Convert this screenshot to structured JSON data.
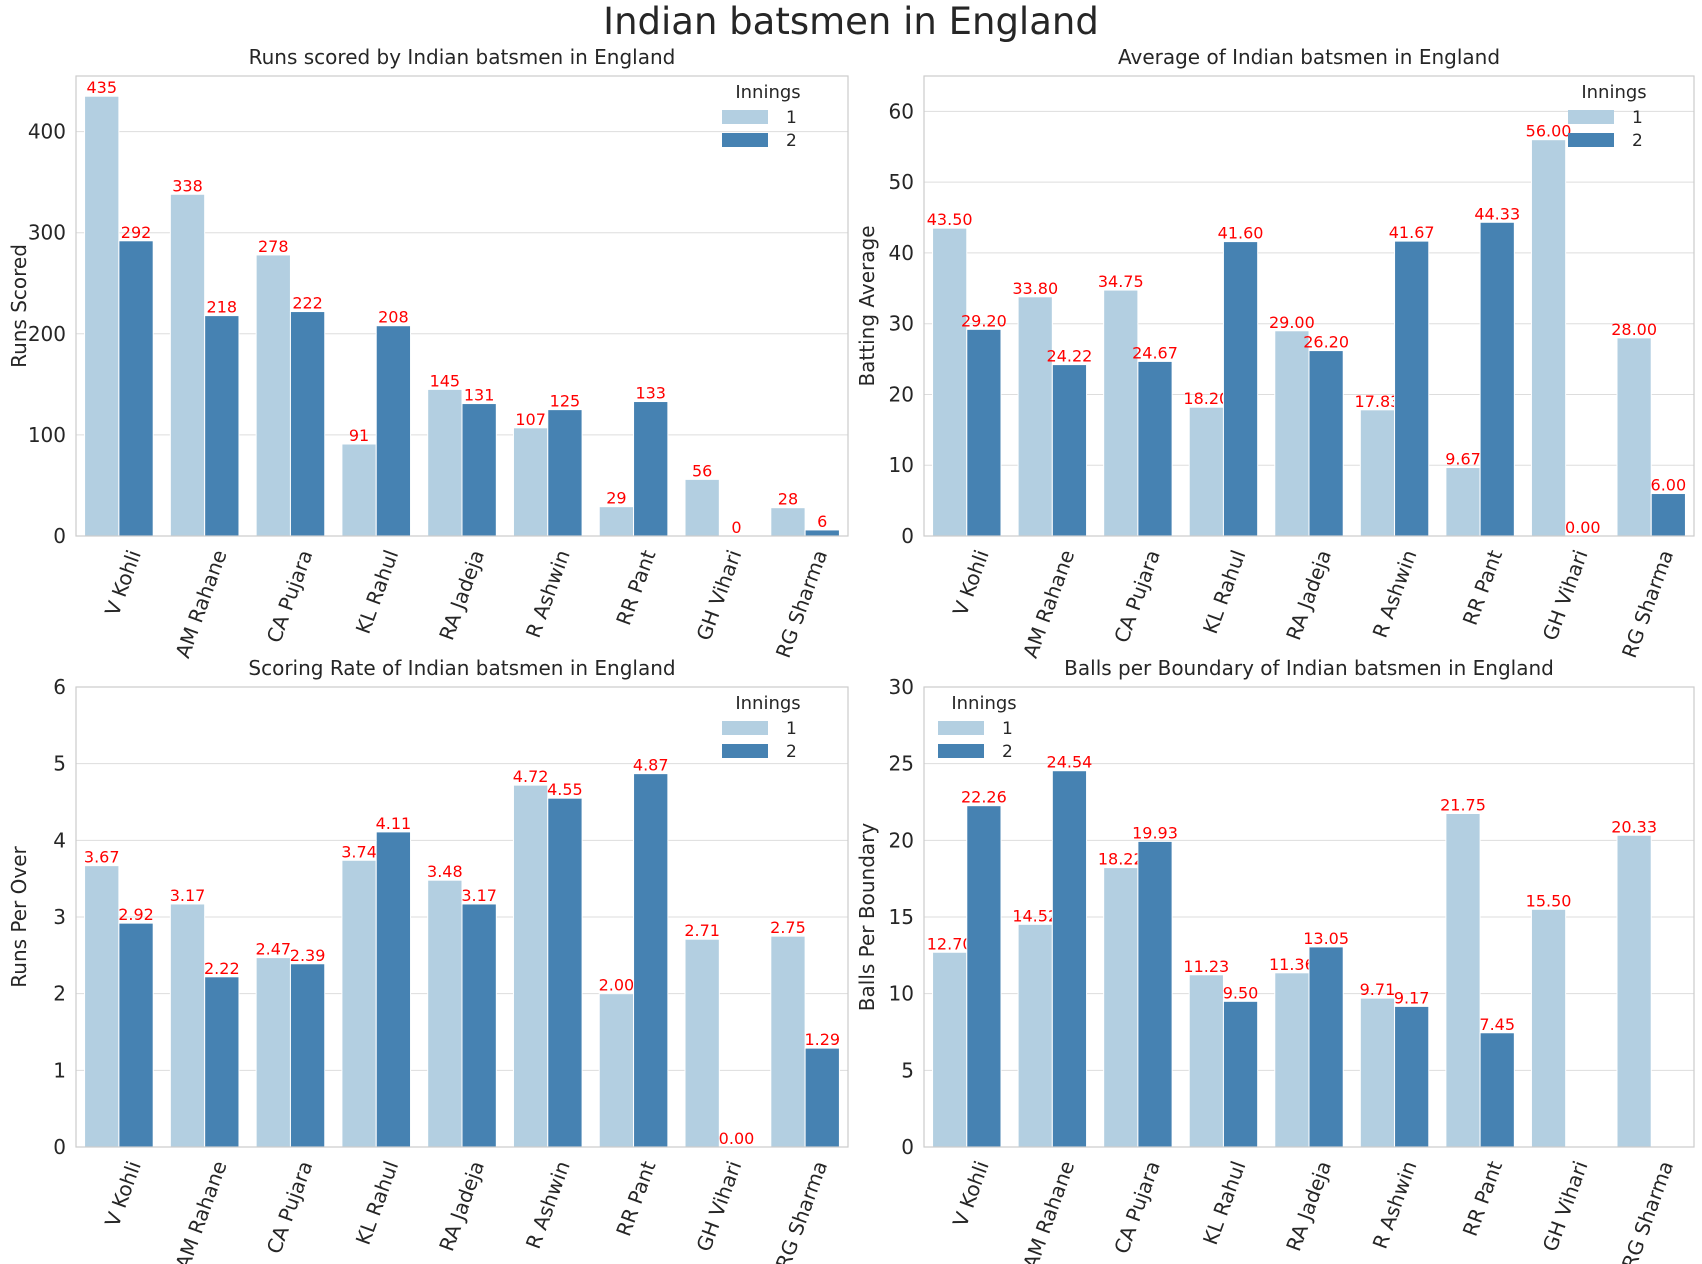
{
  "figure_title": "Indian batsmen in England",
  "colors": {
    "innings_1": "#b3cfe1",
    "innings_2": "#4682b2",
    "bar_label": "#ff0000",
    "grid": "#dddddd",
    "axis": "#cccccc",
    "text": "#262626"
  },
  "chart_data": [
    {
      "type": "bar",
      "title": "Runs scored by Indian batsmen in England",
      "xlabel": "",
      "ylabel": "Runs Scored",
      "ylim": [
        0,
        455
      ],
      "yticks": [
        0,
        100,
        200,
        300,
        400
      ],
      "grid": true,
      "legend_title": "Innings",
      "legend_position": "upper-right",
      "categories": [
        "V Kohli",
        "AM Rahane",
        "CA Pujara",
        "KL Rahul",
        "RA Jadeja",
        "R Ashwin",
        "RR Pant",
        "GH Vihari",
        "RG Sharma"
      ],
      "series": [
        {
          "name": "1",
          "values": [
            435,
            338,
            278,
            91,
            145,
            107,
            29,
            56,
            28
          ],
          "labels": [
            "435",
            "338",
            "278",
            "91",
            "145",
            "107",
            "29",
            "56",
            "28"
          ]
        },
        {
          "name": "2",
          "values": [
            292,
            218,
            222,
            208,
            131,
            125,
            133,
            0,
            6
          ],
          "labels": [
            "292",
            "218",
            "222",
            "208",
            "131",
            "125",
            "133",
            "0",
            "6"
          ]
        }
      ]
    },
    {
      "type": "bar",
      "title": "Average of Indian batsmen in England",
      "xlabel": "",
      "ylabel": "Batting Average",
      "ylim": [
        0,
        65
      ],
      "yticks": [
        0,
        10,
        20,
        30,
        40,
        50,
        60
      ],
      "grid": true,
      "legend_title": "Innings",
      "legend_position": "upper-right",
      "categories": [
        "V Kohli",
        "AM Rahane",
        "CA Pujara",
        "KL Rahul",
        "RA Jadeja",
        "R Ashwin",
        "RR Pant",
        "GH Vihari",
        "RG Sharma"
      ],
      "series": [
        {
          "name": "1",
          "values": [
            43.5,
            33.8,
            34.75,
            18.2,
            29.0,
            17.83,
            9.67,
            56.0,
            28.0
          ],
          "labels": [
            "43.50",
            "33.80",
            "34.75",
            "18.20",
            "29.00",
            "17.83",
            "9.67",
            "56.00",
            "28.00"
          ]
        },
        {
          "name": "2",
          "values": [
            29.2,
            24.22,
            24.67,
            41.6,
            26.2,
            41.67,
            44.33,
            0.0,
            6.0
          ],
          "labels": [
            "29.20",
            "24.22",
            "24.67",
            "41.60",
            "26.20",
            "41.67",
            "44.33",
            "0.00",
            "6.00"
          ]
        }
      ]
    },
    {
      "type": "bar",
      "title": "Scoring Rate of Indian batsmen in England",
      "xlabel": "",
      "ylabel": "Runs Per Over",
      "ylim": [
        0,
        6
      ],
      "yticks": [
        0,
        1,
        2,
        3,
        4,
        5,
        6
      ],
      "grid": true,
      "legend_title": "Innings",
      "legend_position": "upper-right",
      "categories": [
        "V Kohli",
        "AM Rahane",
        "CA Pujara",
        "KL Rahul",
        "RA Jadeja",
        "R Ashwin",
        "RR Pant",
        "GH Vihari",
        "RG Sharma"
      ],
      "series": [
        {
          "name": "1",
          "values": [
            3.67,
            3.17,
            2.47,
            3.74,
            3.48,
            4.72,
            2.0,
            2.71,
            2.75
          ],
          "labels": [
            "3.67",
            "3.17",
            "2.47",
            "3.74",
            "3.48",
            "4.72",
            "2.00",
            "2.71",
            "2.75"
          ]
        },
        {
          "name": "2",
          "values": [
            2.92,
            2.22,
            2.39,
            4.11,
            3.17,
            4.55,
            4.87,
            0.0,
            1.29
          ],
          "labels": [
            "2.92",
            "2.22",
            "2.39",
            "4.11",
            "3.17",
            "4.55",
            "4.87",
            "0.00",
            "1.29"
          ]
        }
      ]
    },
    {
      "type": "bar",
      "title": "Balls per Boundary of Indian batsmen in England",
      "xlabel": "",
      "ylabel": "Balls Per Boundary",
      "ylim": [
        0,
        30
      ],
      "yticks": [
        0,
        5,
        10,
        15,
        20,
        25,
        30
      ],
      "grid": true,
      "legend_title": "Innings",
      "legend_position": "upper-left",
      "categories": [
        "V Kohli",
        "AM Rahane",
        "CA Pujara",
        "KL Rahul",
        "RA Jadeja",
        "R Ashwin",
        "RR Pant",
        "GH Vihari",
        "RG Sharma"
      ],
      "series": [
        {
          "name": "1",
          "values": [
            12.7,
            14.52,
            18.22,
            11.23,
            11.36,
            9.71,
            21.75,
            15.5,
            20.33
          ],
          "labels": [
            "12.70",
            "14.52",
            "18.22",
            "11.23",
            "11.36",
            "9.71",
            "21.75",
            "15.50",
            "20.33"
          ]
        },
        {
          "name": "2",
          "values": [
            22.26,
            24.54,
            19.93,
            9.5,
            13.05,
            9.17,
            7.45,
            null,
            null
          ],
          "labels": [
            "22.26",
            "24.54",
            "19.93",
            "9.50",
            "13.05",
            "9.17",
            "7.45",
            "",
            ""
          ]
        }
      ]
    }
  ]
}
